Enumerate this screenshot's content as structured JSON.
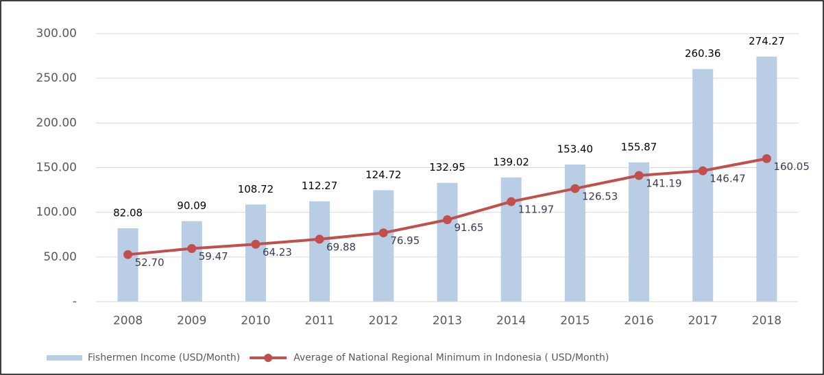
{
  "chart_data": {
    "type": "bar",
    "categories": [
      "2008",
      "2009",
      "2010",
      "2011",
      "2012",
      "2013",
      "2014",
      "2015",
      "2016",
      "2017",
      "2018"
    ],
    "series": [
      {
        "name": "Fishermen Income (USD/Month)",
        "type": "bar",
        "color": "#b9cde5",
        "values": [
          82.08,
          90.09,
          108.72,
          112.27,
          124.72,
          132.95,
          139.02,
          153.4,
          155.87,
          260.36,
          274.27
        ],
        "value_labels": [
          "82.08",
          "90.09",
          "108.72",
          "112.27",
          "124.72",
          "132.95",
          "139.02",
          "153.40",
          "155.87",
          "260.36",
          "274.27"
        ]
      },
      {
        "name": "Average of National Regional Minimum in Indonesia ( USD/Month)",
        "type": "line",
        "color": "#c0504d",
        "values": [
          52.7,
          59.47,
          64.23,
          69.88,
          76.95,
          91.65,
          111.97,
          126.53,
          141.19,
          146.47,
          160.05
        ],
        "value_labels": [
          "52.70",
          "59.47",
          "64.23",
          "69.88",
          "76.95",
          "91.65",
          "111.97",
          "126.53",
          "141.19",
          "146.47",
          "160.05"
        ]
      }
    ],
    "ylim": [
      0,
      300
    ],
    "yticks": [
      {
        "value": 0,
        "label": "-"
      },
      {
        "value": 50,
        "label": "50.00"
      },
      {
        "value": 100,
        "label": "100.00"
      },
      {
        "value": 150,
        "label": "150.00"
      },
      {
        "value": 200,
        "label": "200.00"
      },
      {
        "value": 250,
        "label": "250.00"
      },
      {
        "value": 300,
        "label": "300.00"
      }
    ],
    "grid": true,
    "legend": "bottom"
  }
}
